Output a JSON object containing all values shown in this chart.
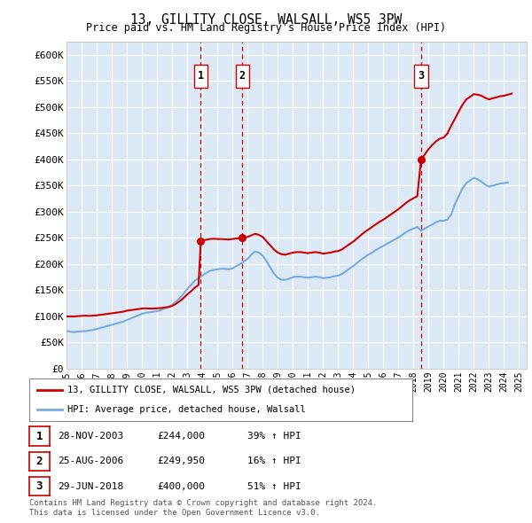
{
  "title": "13, GILLITY CLOSE, WALSALL, WS5 3PW",
  "subtitle": "Price paid vs. HM Land Registry's House Price Index (HPI)",
  "ylabel_ticks": [
    "£0",
    "£50K",
    "£100K",
    "£150K",
    "£200K",
    "£250K",
    "£300K",
    "£350K",
    "£400K",
    "£450K",
    "£500K",
    "£550K",
    "£600K"
  ],
  "ytick_values": [
    0,
    50000,
    100000,
    150000,
    200000,
    250000,
    300000,
    350000,
    400000,
    450000,
    500000,
    550000,
    600000
  ],
  "ylim": [
    0,
    625000
  ],
  "xlim_start": 1995.0,
  "xlim_end": 2025.5,
  "plot_bg_color": "#dce9f5",
  "grid_color": "#ffffff",
  "sale_color": "#cc0000",
  "hpi_color": "#7aaadd",
  "sale_label": "13, GILLITY CLOSE, WALSALL, WS5 3PW (detached house)",
  "hpi_label": "HPI: Average price, detached house, Walsall",
  "transactions": [
    {
      "id": 1,
      "date": "28-NOV-2003",
      "price": 244000,
      "pct": "39%",
      "x": 2003.9
    },
    {
      "id": 2,
      "date": "25-AUG-2006",
      "price": 249950,
      "pct": "16%",
      "x": 2006.65
    },
    {
      "id": 3,
      "date": "29-JUN-2018",
      "price": 400000,
      "pct": "51%",
      "x": 2018.5
    }
  ],
  "footnote1": "Contains HM Land Registry data © Crown copyright and database right 2024.",
  "footnote2": "This data is licensed under the Open Government Licence v3.0.",
  "hpi_data_x": [
    1995.0,
    1995.25,
    1995.5,
    1995.75,
    1996.0,
    1996.25,
    1996.5,
    1996.75,
    1997.0,
    1997.25,
    1997.5,
    1997.75,
    1998.0,
    1998.25,
    1998.5,
    1998.75,
    1999.0,
    1999.25,
    1999.5,
    1999.75,
    2000.0,
    2000.25,
    2000.5,
    2000.75,
    2001.0,
    2001.25,
    2001.5,
    2001.75,
    2002.0,
    2002.25,
    2002.5,
    2002.75,
    2003.0,
    2003.25,
    2003.5,
    2003.75,
    2004.0,
    2004.25,
    2004.5,
    2004.75,
    2005.0,
    2005.25,
    2005.5,
    2005.75,
    2006.0,
    2006.25,
    2006.5,
    2006.75,
    2007.0,
    2007.25,
    2007.5,
    2007.75,
    2008.0,
    2008.25,
    2008.5,
    2008.75,
    2009.0,
    2009.25,
    2009.5,
    2009.75,
    2010.0,
    2010.25,
    2010.5,
    2010.75,
    2011.0,
    2011.25,
    2011.5,
    2011.75,
    2012.0,
    2012.25,
    2012.5,
    2012.75,
    2013.0,
    2013.25,
    2013.5,
    2013.75,
    2014.0,
    2014.25,
    2014.5,
    2014.75,
    2015.0,
    2015.25,
    2015.5,
    2015.75,
    2016.0,
    2016.25,
    2016.5,
    2016.75,
    2017.0,
    2017.25,
    2017.5,
    2017.75,
    2018.0,
    2018.25,
    2018.5,
    2018.75,
    2019.0,
    2019.25,
    2019.5,
    2019.75,
    2020.0,
    2020.25,
    2020.5,
    2020.75,
    2021.0,
    2021.25,
    2021.5,
    2021.75,
    2022.0,
    2022.25,
    2022.5,
    2022.75,
    2023.0,
    2023.25,
    2023.5,
    2023.75,
    2024.0,
    2024.25
  ],
  "hpi_data_y": [
    72000,
    71000,
    70000,
    71000,
    71500,
    72000,
    73000,
    74000,
    76000,
    78000,
    80000,
    82000,
    84000,
    86000,
    88000,
    90000,
    93000,
    96000,
    99000,
    102000,
    105000,
    107000,
    108000,
    109000,
    110000,
    112000,
    115000,
    118000,
    122000,
    128000,
    135000,
    143000,
    152000,
    160000,
    168000,
    173000,
    178000,
    183000,
    187000,
    189000,
    190000,
    191000,
    191000,
    190000,
    192000,
    196000,
    200000,
    205000,
    210000,
    218000,
    224000,
    222000,
    216000,
    206000,
    194000,
    182000,
    174000,
    170000,
    170000,
    172000,
    175000,
    176000,
    176000,
    175000,
    174000,
    175000,
    176000,
    175000,
    173000,
    174000,
    175000,
    177000,
    178000,
    181000,
    186000,
    191000,
    196000,
    202000,
    208000,
    213000,
    218000,
    222000,
    227000,
    231000,
    235000,
    239000,
    243000,
    247000,
    251000,
    256000,
    261000,
    265000,
    268000,
    271000,
    264000,
    268000,
    272000,
    276000,
    280000,
    283000,
    283000,
    285000,
    295000,
    315000,
    330000,
    345000,
    355000,
    360000,
    365000,
    362000,
    358000,
    352000,
    348000,
    350000,
    352000,
    354000,
    355000,
    356000
  ],
  "sale_data_x": [
    1995.0,
    1995.25,
    1995.5,
    1995.75,
    1996.0,
    1996.25,
    1996.5,
    1996.75,
    1997.0,
    1997.25,
    1997.5,
    1997.75,
    1998.0,
    1998.25,
    1998.5,
    1998.75,
    1999.0,
    1999.25,
    1999.5,
    1999.75,
    2000.0,
    2000.25,
    2000.5,
    2000.75,
    2001.0,
    2001.25,
    2001.5,
    2001.75,
    2002.0,
    2002.25,
    2002.5,
    2002.75,
    2003.0,
    2003.25,
    2003.5,
    2003.75,
    2003.9,
    2004.0,
    2004.25,
    2004.5,
    2004.75,
    2005.0,
    2005.25,
    2005.5,
    2005.75,
    2006.0,
    2006.25,
    2006.5,
    2006.65,
    2006.75,
    2007.0,
    2007.25,
    2007.5,
    2007.75,
    2008.0,
    2008.25,
    2008.5,
    2008.75,
    2009.0,
    2009.25,
    2009.5,
    2009.75,
    2010.0,
    2010.25,
    2010.5,
    2010.75,
    2011.0,
    2011.25,
    2011.5,
    2011.75,
    2012.0,
    2012.25,
    2012.5,
    2012.75,
    2013.0,
    2013.25,
    2013.5,
    2013.75,
    2014.0,
    2014.25,
    2014.5,
    2014.75,
    2015.0,
    2015.25,
    2015.5,
    2015.75,
    2016.0,
    2016.25,
    2016.5,
    2016.75,
    2017.0,
    2017.25,
    2017.5,
    2017.75,
    2018.0,
    2018.25,
    2018.5,
    2018.75,
    2019.0,
    2019.25,
    2019.5,
    2019.75,
    2020.0,
    2020.25,
    2020.5,
    2020.75,
    2021.0,
    2021.25,
    2021.5,
    2021.75,
    2022.0,
    2022.25,
    2022.5,
    2022.75,
    2023.0,
    2023.25,
    2023.5,
    2023.75,
    2024.0,
    2024.25,
    2024.5
  ],
  "sale_data_y": [
    100000,
    100000,
    100000,
    100500,
    101000,
    101500,
    101000,
    101500,
    102000,
    103000,
    104000,
    105000,
    106000,
    107000,
    108000,
    109000,
    111000,
    112000,
    113000,
    114000,
    115000,
    115500,
    115000,
    115000,
    115500,
    116000,
    117000,
    118000,
    120000,
    124000,
    129000,
    135000,
    142000,
    148000,
    155000,
    160000,
    244000,
    245000,
    246500,
    248000,
    248500,
    248000,
    248000,
    247500,
    247000,
    248000,
    249000,
    249500,
    249950,
    250500,
    252000,
    255000,
    258000,
    256000,
    252000,
    244000,
    236000,
    228000,
    222000,
    219000,
    218000,
    220000,
    222000,
    223000,
    223000,
    222000,
    221000,
    222000,
    223000,
    222000,
    220000,
    221000,
    222000,
    224000,
    225000,
    228000,
    233000,
    238000,
    243000,
    249000,
    255000,
    261000,
    266000,
    271000,
    276000,
    281000,
    285000,
    290000,
    295000,
    300000,
    305000,
    311000,
    317000,
    322000,
    326000,
    330000,
    400000,
    410000,
    420000,
    428000,
    435000,
    440000,
    442000,
    450000,
    465000,
    478000,
    492000,
    505000,
    515000,
    520000,
    525000,
    524000,
    522000,
    518000,
    515000,
    517000,
    519000,
    521000,
    522000,
    524000,
    526000
  ]
}
